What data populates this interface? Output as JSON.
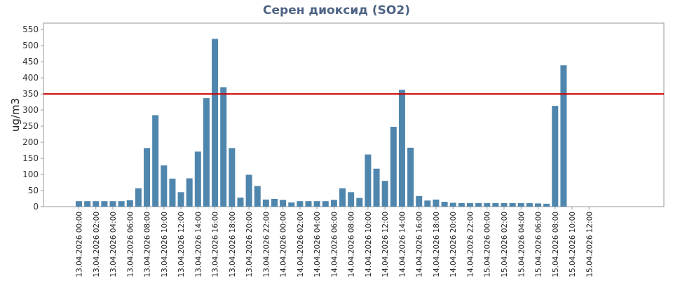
{
  "chart_data": {
    "type": "bar",
    "title": "Серен диоксид (SO2)",
    "xlabel": "",
    "ylabel": "ug/m3",
    "ylim": [
      0,
      570
    ],
    "yticks": [
      0,
      50,
      100,
      150,
      200,
      250,
      300,
      350,
      400,
      450,
      500,
      550
    ],
    "grid": false,
    "legend": "none",
    "colors": {
      "bar": "#4f86ad",
      "threshold": "#cc0000",
      "title": "#4d6384",
      "frame": "#999999"
    },
    "threshold": {
      "value": 350
    },
    "categories": [
      "13.04.2026 00:00",
      "13.04.2026 01:00",
      "13.04.2026 02:00",
      "13.04.2026 03:00",
      "13.04.2026 04:00",
      "13.04.2026 05:00",
      "13.04.2026 06:00",
      "13.04.2026 07:00",
      "13.04.2026 08:00",
      "13.04.2026 09:00",
      "13.04.2026 10:00",
      "13.04.2026 11:00",
      "13.04.2026 12:00",
      "13.04.2026 13:00",
      "13.04.2026 14:00",
      "13.04.2026 15:00",
      "13.04.2026 16:00",
      "13.04.2026 17:00",
      "13.04.2026 18:00",
      "13.04.2026 19:00",
      "13.04.2026 20:00",
      "13.04.2026 21:00",
      "13.04.2026 22:00",
      "13.04.2026 23:00",
      "14.04.2026 00:00",
      "14.04.2026 01:00",
      "14.04.2026 02:00",
      "14.04.2026 03:00",
      "14.04.2026 04:00",
      "14.04.2026 05:00",
      "14.04.2026 06:00",
      "14.04.2026 07:00",
      "14.04.2026 08:00",
      "14.04.2026 09:00",
      "14.04.2026 10:00",
      "14.04.2026 11:00",
      "14.04.2026 12:00",
      "14.04.2026 13:00",
      "14.04.2026 14:00",
      "14.04.2026 15:00",
      "14.04.2026 16:00",
      "14.04.2026 17:00",
      "14.04.2026 18:00",
      "14.04.2026 19:00",
      "14.04.2026 20:00",
      "14.04.2026 21:00",
      "14.04.2026 22:00",
      "14.04.2026 23:00",
      "15.04.2026 00:00",
      "15.04.2026 01:00",
      "15.04.2026 02:00",
      "15.04.2026 03:00",
      "15.04.2026 04:00",
      "15.04.2026 05:00",
      "15.04.2026 06:00",
      "15.04.2026 07:00",
      "15.04.2026 08:00",
      "15.04.2026 09:00",
      "15.04.2026 10:00",
      "15.04.2026 11:00",
      "15.04.2026 12:00",
      "15.04.2026 13:00",
      "15.04.2026 14:00",
      "15.04.2026 15:00",
      "15.04.2026 16:00"
    ],
    "values": [
      17,
      17,
      17,
      17,
      17,
      17,
      20,
      57,
      182,
      284,
      128,
      87,
      45,
      88,
      171,
      337,
      521,
      371,
      182,
      28,
      99,
      64,
      22,
      24,
      21,
      13,
      17,
      17,
      17,
      17,
      21,
      57,
      45,
      27,
      162,
      118,
      80,
      248,
      363,
      183,
      33,
      19,
      22,
      15,
      12,
      11,
      11,
      11,
      11,
      11,
      11,
      11,
      11,
      11,
      10,
      9,
      313,
      439,
      null,
      null,
      null,
      null,
      null,
      null,
      null
    ],
    "xtick_labels": [
      "13.04.2026 00:00",
      "13.04.2026 02:00",
      "13.04.2026 04:00",
      "13.04.2026 06:00",
      "13.04.2026 08:00",
      "13.04.2026 10:00",
      "13.04.2026 12:00",
      "13.04.2026 14:00",
      "13.04.2026 16:00",
      "13.04.2026 18:00",
      "13.04.2026 20:00",
      "13.04.2026 22:00",
      "14.04.2026 00:00",
      "14.04.2026 02:00",
      "14.04.2026 04:00",
      "14.04.2026 06:00",
      "14.04.2026 08:00",
      "14.04.2026 10:00",
      "14.04.2026 12:00",
      "14.04.2026 14:00",
      "14.04.2026 16:00",
      "14.04.2026 18:00",
      "14.04.2026 20:00",
      "14.04.2026 22:00",
      "15.04.2026 00:00",
      "15.04.2026 02:00",
      "15.04.2026 04:00",
      "15.04.2026 06:00",
      "15.04.2026 08:00",
      "15.04.2026 10:00",
      "15.04.2026 12:00"
    ]
  }
}
